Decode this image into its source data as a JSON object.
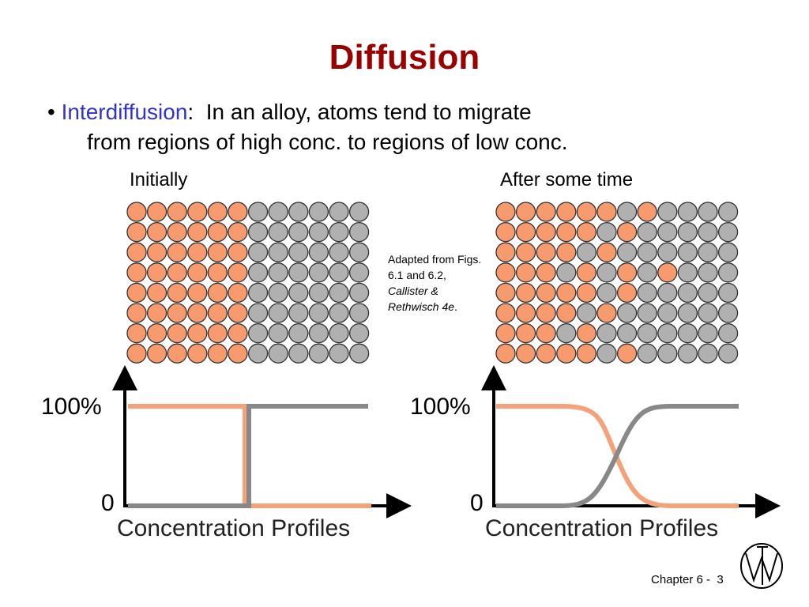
{
  "title": "Diffusion",
  "bullet": {
    "term": "Interdiffusion",
    "separator": ":",
    "text": "In an alloy, atoms tend to migrate",
    "text_line2": "from regions of high conc. to regions of low conc."
  },
  "panels": [
    {
      "label": "Initially",
      "y_top": "100%",
      "y_bottom": "0",
      "x_label": "Concentration Profiles"
    },
    {
      "label": "After some time",
      "y_top": "100%",
      "y_bottom": "0",
      "x_label": "Concentration Profiles"
    }
  ],
  "caption": {
    "text": "Adapted from Figs. 6.1 and 6.2,",
    "source": "Callister & Rethwisch 4e",
    "end": "."
  },
  "footer": {
    "chapter": "Chapter 6 -",
    "page": "3"
  }
}
